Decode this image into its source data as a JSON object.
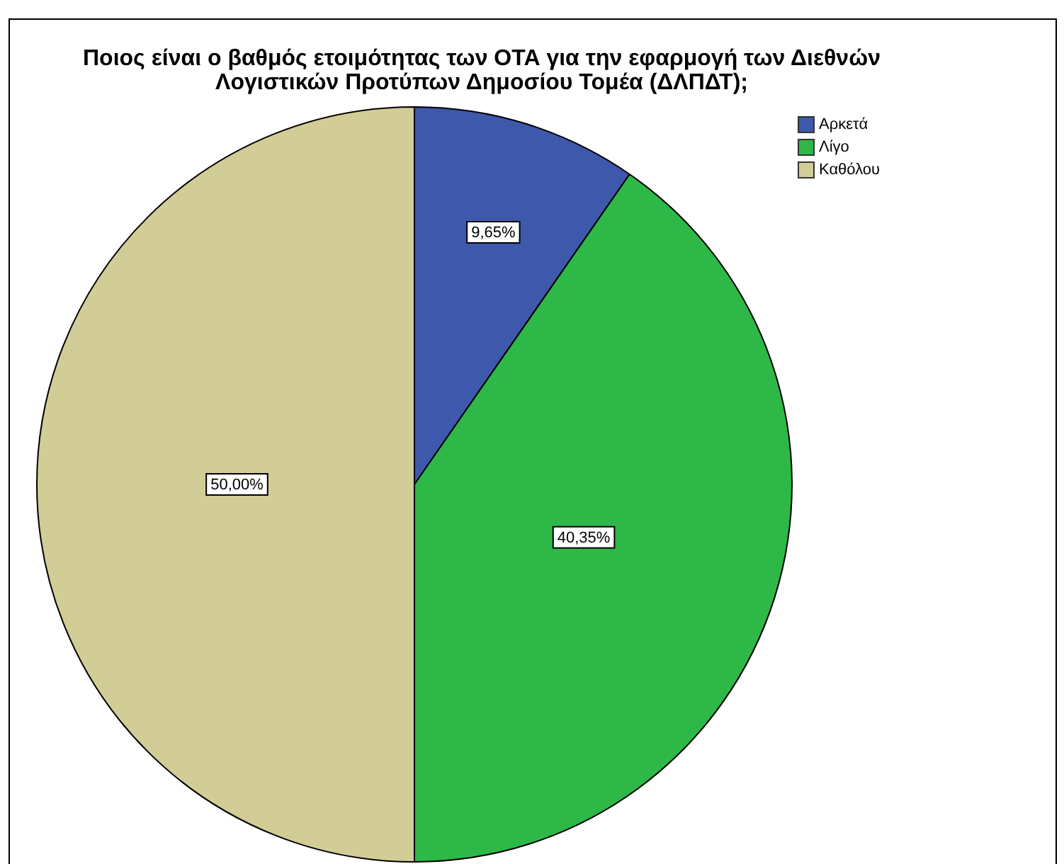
{
  "chart_data": {
    "type": "pie",
    "title": "Ποιος είναι ο βαθμός ετοιμότητας των ΟΤΑ για την εφαρμογή των Διεθνών Λογιστικών Προτύπων Δημοσίου Τομέα (ΔΛΠΔΤ);",
    "categories": [
      "Αρκετά",
      "Λίγο",
      "Καθόλου"
    ],
    "values": [
      9.65,
      40.35,
      50.0
    ],
    "colors": [
      "#3e58ac",
      "#2eb848",
      "#d2cc96"
    ],
    "value_labels": [
      "9,65%",
      "40,35%",
      "50,00%"
    ],
    "legend": "top right"
  }
}
